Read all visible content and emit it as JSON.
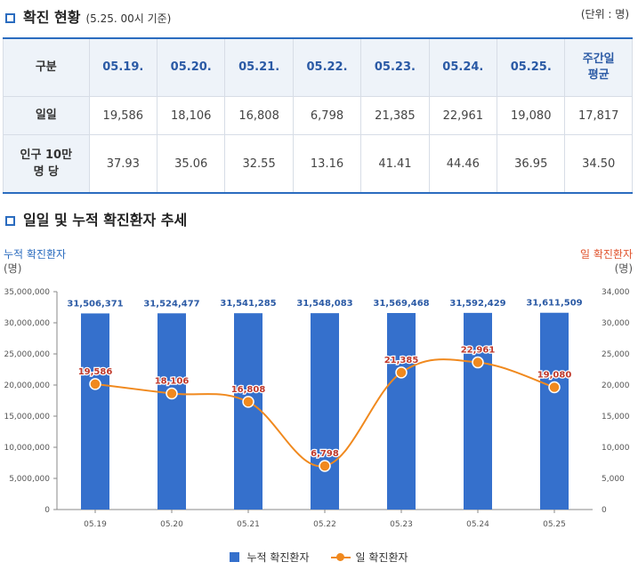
{
  "section1": {
    "title": "확진 현황",
    "subtitle": "(5.25. 00시 기준)",
    "unit": "(단위 : 명)"
  },
  "table": {
    "headers": [
      "구분",
      "05.19.",
      "05.20.",
      "05.21.",
      "05.22.",
      "05.23.",
      "05.24.",
      "05.25.",
      "주간일\n평균"
    ],
    "rows": [
      {
        "label": "일일",
        "values": [
          "19,586",
          "18,106",
          "16,808",
          "6,798",
          "21,385",
          "22,961",
          "19,080",
          "17,817"
        ]
      },
      {
        "label": "인구 10만\n명 당",
        "values": [
          "37.93",
          "35.06",
          "32.55",
          "13.16",
          "41.41",
          "44.46",
          "36.95",
          "34.50"
        ]
      }
    ]
  },
  "section2": {
    "title": "일일 및 누적 확진환자 추세"
  },
  "chart_data": {
    "type": "bar+line",
    "categories": [
      "05.19",
      "05.20",
      "05.21",
      "05.22",
      "05.23",
      "05.24",
      "05.25"
    ],
    "left_axis": {
      "title": "누적 확진환자",
      "unit": "(명)",
      "range": [
        0,
        35000000
      ],
      "ticks": [
        "0",
        "5,000,000",
        "10,000,000",
        "15,000,000",
        "20,000,000",
        "25,000,000",
        "30,000,000",
        "35,000,000"
      ]
    },
    "right_axis": {
      "title": "일 확진환자",
      "unit": "(명)",
      "range": [
        0,
        34000
      ],
      "ticks": [
        "0",
        "5,000",
        "10,000",
        "15,000",
        "20,000",
        "25,000",
        "30,000",
        "34,000"
      ]
    },
    "series": [
      {
        "name": "누적 확진환자",
        "kind": "bar",
        "axis": "left",
        "color": "#3570cc",
        "values": [
          31506371,
          31524477,
          31541285,
          31548083,
          31569468,
          31592429,
          31611509
        ],
        "labels": [
          "31,506,371",
          "31,524,477",
          "31,541,285",
          "31,548,083",
          "31,569,468",
          "31,592,429",
          "31,611,509"
        ]
      },
      {
        "name": "일 확진환자",
        "kind": "line",
        "axis": "right",
        "color": "#f0891e",
        "values": [
          19586,
          18106,
          16808,
          6798,
          21385,
          22961,
          19080
        ],
        "labels": [
          "19,586",
          "18,106",
          "16,808",
          "6,798",
          "21,385",
          "22,961",
          "19,080"
        ]
      }
    ],
    "legend_position": "bottom"
  }
}
